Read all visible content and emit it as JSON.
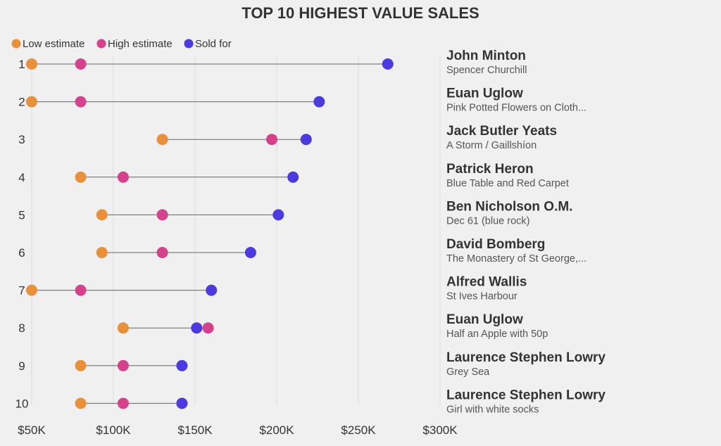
{
  "chart_data": {
    "type": "dumbbell",
    "title": "TOP 10 HIGHEST VALUE SALES",
    "xlabel": "",
    "ylabel": "",
    "xlim": [
      50000,
      300000
    ],
    "x_ticks": [
      {
        "value": 50000,
        "label": "$50K"
      },
      {
        "value": 100000,
        "label": "$100K"
      },
      {
        "value": 150000,
        "label": "$150K"
      },
      {
        "value": 200000,
        "label": "$200K"
      },
      {
        "value": 250000,
        "label": "$250K"
      },
      {
        "value": 300000,
        "label": "$300K"
      }
    ],
    "legend": [
      {
        "key": "low",
        "label": "Low estimate",
        "color": "#e8913a"
      },
      {
        "key": "high",
        "label": "High estimate",
        "color": "#d6418c"
      },
      {
        "key": "sold",
        "label": "Sold for",
        "color": "#4a3ae0"
      }
    ],
    "rows": [
      {
        "rank": "1",
        "artist": "John Minton",
        "work": "Spencer Churchill",
        "low": 50000,
        "high": 80000,
        "sold": 268000
      },
      {
        "rank": "2",
        "artist": "Euan Uglow",
        "work": "Pink Potted Flowers on Cloth...",
        "low": 50000,
        "high": 80000,
        "sold": 226000
      },
      {
        "rank": "3",
        "artist": "Jack Butler Yeats",
        "work": "A Storm / Gaillshíon",
        "low": 130000,
        "high": 197000,
        "sold": 218000
      },
      {
        "rank": "4",
        "artist": "Patrick Heron",
        "work": "Blue Table and Red Carpet",
        "low": 80000,
        "high": 106000,
        "sold": 210000
      },
      {
        "rank": "5",
        "artist": "Ben Nicholson O.M.",
        "work": "Dec 61 (blue rock)",
        "low": 93000,
        "high": 130000,
        "sold": 201000
      },
      {
        "rank": "6",
        "artist": "David Bomberg",
        "work": "The Monastery of St George,...",
        "low": 93000,
        "high": 130000,
        "sold": 184000
      },
      {
        "rank": "7",
        "artist": "Alfred Wallis",
        "work": "St Ives Harbour",
        "low": 50000,
        "high": 80000,
        "sold": 160000
      },
      {
        "rank": "8",
        "artist": "Euan Uglow",
        "work": "Half an Apple with 50p",
        "low": 106000,
        "high": 158000,
        "sold": 151000
      },
      {
        "rank": "9",
        "artist": "Laurence Stephen Lowry",
        "work": "Grey Sea",
        "low": 80000,
        "high": 106000,
        "sold": 142000
      },
      {
        "rank": "10",
        "artist": "Laurence Stephen Lowry",
        "work": "Girl with white socks",
        "low": 80000,
        "high": 106000,
        "sold": 142000
      }
    ]
  }
}
